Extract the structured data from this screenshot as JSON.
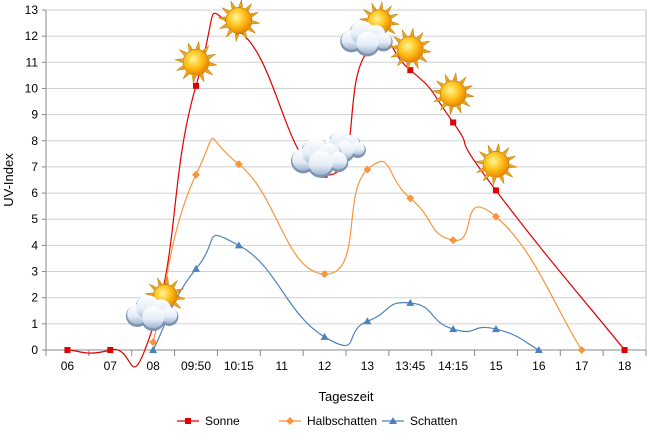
{
  "chart_data": {
    "type": "line",
    "xlabel": "Tageszeit",
    "ylabel": "UV-Index",
    "ylim": [
      0,
      13
    ],
    "y_ticks": [
      0,
      1,
      2,
      3,
      4,
      5,
      6,
      7,
      8,
      9,
      10,
      11,
      12,
      13
    ],
    "grid": true,
    "legend_position": "bottom",
    "categories": [
      "06",
      "07",
      "08",
      "09:50",
      "10:15",
      "11",
      "12",
      "13",
      "13:45",
      "14:15",
      "15",
      "16",
      "17",
      "18"
    ],
    "series": [
      {
        "name": "Sonne",
        "color": "#e00000",
        "marker": "square",
        "values": [
          0,
          0,
          0.9,
          10.1,
          12.2,
          null,
          6.7,
          11.4,
          10.7,
          8.7,
          6.1,
          null,
          null,
          0
        ]
      },
      {
        "name": "Halbschatten",
        "color": "#f7963c",
        "marker": "diamond",
        "values": [
          null,
          null,
          0.3,
          6.7,
          7.1,
          null,
          2.9,
          6.9,
          5.8,
          4.2,
          5.1,
          null,
          0,
          null
        ]
      },
      {
        "name": "Schatten",
        "color": "#4a82be",
        "marker": "triangle",
        "values": [
          null,
          null,
          0,
          3.1,
          4.0,
          null,
          0.5,
          1.1,
          1.8,
          0.8,
          0.8,
          0,
          null,
          null
        ]
      }
    ],
    "weather_icons": [
      {
        "category": "08",
        "value": 1.9,
        "icon": "sun-behind-cloud-icon"
      },
      {
        "category": "09:50",
        "value": 11.0,
        "icon": "sun-icon"
      },
      {
        "category": "10:15",
        "value": 12.6,
        "icon": "sun-icon"
      },
      {
        "category": "12",
        "value": 7.6,
        "icon": "clouds-icon"
      },
      {
        "category": "13",
        "value": 12.4,
        "icon": "sun-behind-cloud-icon"
      },
      {
        "category": "13:45",
        "value": 11.5,
        "icon": "sun-icon"
      },
      {
        "category": "14:15",
        "value": 9.8,
        "icon": "sun-icon"
      },
      {
        "category": "15",
        "value": 7.1,
        "icon": "sun-icon"
      }
    ]
  }
}
